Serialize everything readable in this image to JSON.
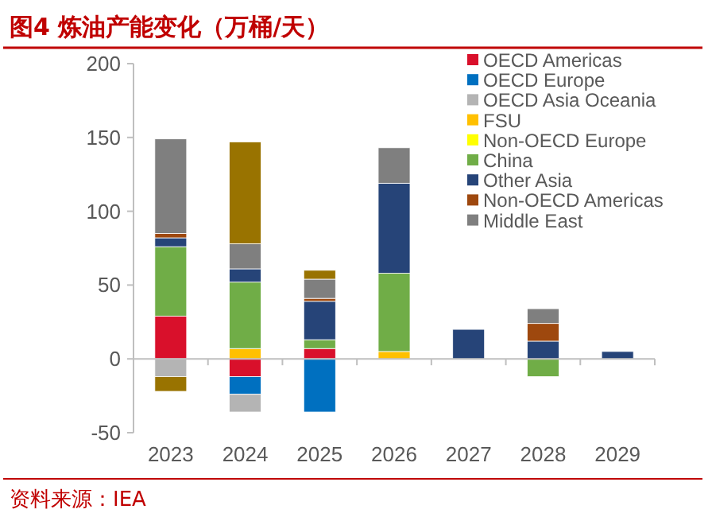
{
  "chart_data": {
    "type": "bar",
    "stacked": true,
    "title": "图4  炼油产能变化（万桶/天）",
    "categories": [
      "2023",
      "2024",
      "2025",
      "2026",
      "2027",
      "2028",
      "2029"
    ],
    "series": [
      {
        "name": "OECD Americas",
        "color": "#d9102b",
        "values": [
          29,
          -12,
          7,
          null,
          null,
          null,
          null
        ]
      },
      {
        "name": "OECD Europe",
        "color": "#0070c0",
        "values": [
          null,
          -12,
          -36,
          null,
          null,
          null,
          null
        ]
      },
      {
        "name": "OECD Asia Oceania",
        "color": "#b4b4b4",
        "values": [
          -12,
          -12,
          null,
          null,
          null,
          null,
          null
        ]
      },
      {
        "name": "FSU",
        "color": "#ffc000",
        "values": [
          null,
          7,
          null,
          5,
          null,
          null,
          null
        ]
      },
      {
        "name": "Non-OECD Europe",
        "color": "#ffff00",
        "values": [
          null,
          null,
          null,
          null,
          null,
          null,
          null
        ]
      },
      {
        "name": "China",
        "color": "#70ad47",
        "values": [
          47,
          45,
          6,
          53,
          null,
          -12,
          null
        ]
      },
      {
        "name": "Other Asia",
        "color": "#264478",
        "values": [
          6,
          9,
          26,
          61,
          20,
          12,
          5
        ]
      },
      {
        "name": "Non-OECD Americas",
        "color": "#9e480e",
        "values": [
          3,
          null,
          2,
          null,
          null,
          12,
          null
        ]
      },
      {
        "name": "Middle East",
        "color": "#7f7f7f",
        "values": [
          64,
          17,
          13,
          24,
          null,
          10,
          null
        ]
      },
      {
        "color": "#997300",
        "values": [
          -10,
          69,
          6,
          null,
          null,
          null,
          null
        ]
      }
    ],
    "ylim": [
      -50,
      200
    ],
    "yticks": [
      -50,
      0,
      50,
      100,
      150,
      200
    ],
    "legend": "top right",
    "annotations": [
      "资料来源：IEA"
    ]
  }
}
